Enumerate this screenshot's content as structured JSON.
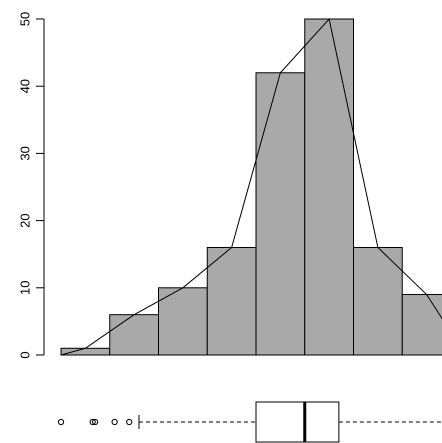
{
  "chart_data": [
    {
      "type": "bar",
      "subtype": "histogram",
      "bins": [
        {
          "start": 0,
          "end": 1,
          "count": 1
        },
        {
          "start": 1,
          "end": 2,
          "count": 6
        },
        {
          "start": 2,
          "end": 3,
          "count": 10
        },
        {
          "start": 3,
          "end": 4,
          "count": 16
        },
        {
          "start": 4,
          "end": 5,
          "count": 42
        },
        {
          "start": 5,
          "end": 6,
          "count": 50
        },
        {
          "start": 6,
          "end": 7,
          "count": 16
        },
        {
          "start": 7,
          "end": 8,
          "count": 9
        }
      ],
      "frequency_polygon": {
        "x": [
          0,
          0.5,
          1.5,
          2.5,
          3.5,
          4.5,
          5.5,
          6.5,
          7.5,
          8.3
        ],
        "y": [
          0,
          1,
          6,
          10,
          16,
          42,
          50,
          16,
          9,
          0
        ]
      },
      "ylim": [
        0,
        50
      ],
      "yticks": [
        "0",
        "10",
        "20",
        "30",
        "40",
        "50"
      ],
      "xlabel": "",
      "ylabel": "",
      "title": "",
      "bar_color": "#a9a9a9",
      "grid": false,
      "legend": "none"
    },
    {
      "type": "boxplot",
      "orientation": "horizontal",
      "min": 1.6,
      "q1": 4.0,
      "median": 5.0,
      "q3": 5.7,
      "max": 8.2,
      "outliers": [
        0,
        0.65,
        0.7,
        1.1,
        1.4
      ]
    }
  ]
}
